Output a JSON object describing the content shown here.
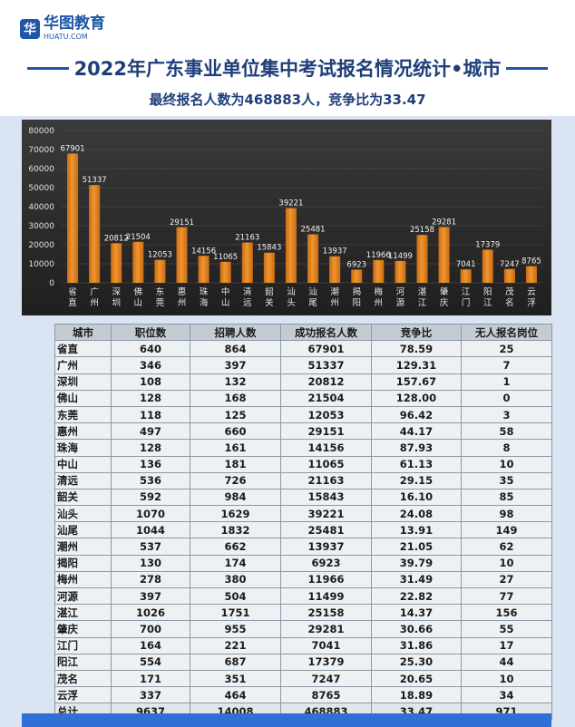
{
  "logo": {
    "mark": "华",
    "name": "华图教育",
    "sub": "HUATU.COM"
  },
  "title": "2022年广东事业单位集中考试报名情况统计•城市",
  "subtitle": "最终报名人数为468883人，竞争比为33.47",
  "chart_data": {
    "type": "bar",
    "categories": [
      "省直",
      "广州",
      "深圳",
      "佛山",
      "东莞",
      "惠州",
      "珠海",
      "中山",
      "清远",
      "韶关",
      "汕头",
      "汕尾",
      "潮州",
      "揭阳",
      "梅州",
      "河源",
      "湛江",
      "肇庆",
      "江门",
      "阳江",
      "茂名",
      "云浮"
    ],
    "values": [
      67901,
      51337,
      20812,
      21504,
      12053,
      29151,
      14156,
      11065,
      21163,
      15843,
      39221,
      25481,
      13937,
      6923,
      11966,
      11499,
      25158,
      29281,
      7041,
      17379,
      7247,
      8765
    ],
    "ylim": [
      0,
      80000
    ],
    "yticks": [
      0,
      10000,
      20000,
      30000,
      40000,
      50000,
      60000,
      70000,
      80000
    ],
    "bar_color": "#f0962e"
  },
  "table": {
    "headers": [
      "城市",
      "职位数",
      "招聘人数",
      "成功报名人数",
      "竞争比",
      "无人报名岗位"
    ],
    "rows": [
      [
        "省直",
        "640",
        "864",
        "67901",
        "78.59",
        "25"
      ],
      [
        "广州",
        "346",
        "397",
        "51337",
        "129.31",
        "7"
      ],
      [
        "深圳",
        "108",
        "132",
        "20812",
        "157.67",
        "1"
      ],
      [
        "佛山",
        "128",
        "168",
        "21504",
        "128.00",
        "0"
      ],
      [
        "东莞",
        "118",
        "125",
        "12053",
        "96.42",
        "3"
      ],
      [
        "惠州",
        "497",
        "660",
        "29151",
        "44.17",
        "58"
      ],
      [
        "珠海",
        "128",
        "161",
        "14156",
        "87.93",
        "8"
      ],
      [
        "中山",
        "136",
        "181",
        "11065",
        "61.13",
        "10"
      ],
      [
        "清远",
        "536",
        "726",
        "21163",
        "29.15",
        "35"
      ],
      [
        "韶关",
        "592",
        "984",
        "15843",
        "16.10",
        "85"
      ],
      [
        "汕头",
        "1070",
        "1629",
        "39221",
        "24.08",
        "98"
      ],
      [
        "汕尾",
        "1044",
        "1832",
        "25481",
        "13.91",
        "149"
      ],
      [
        "潮州",
        "537",
        "662",
        "13937",
        "21.05",
        "62"
      ],
      [
        "揭阳",
        "130",
        "174",
        "6923",
        "39.79",
        "10"
      ],
      [
        "梅州",
        "278",
        "380",
        "11966",
        "31.49",
        "27"
      ],
      [
        "河源",
        "397",
        "504",
        "11499",
        "22.82",
        "77"
      ],
      [
        "湛江",
        "1026",
        "1751",
        "25158",
        "14.37",
        "156"
      ],
      [
        "肇庆",
        "700",
        "955",
        "29281",
        "30.66",
        "55"
      ],
      [
        "江门",
        "164",
        "221",
        "7041",
        "31.86",
        "17"
      ],
      [
        "阳江",
        "554",
        "687",
        "17379",
        "25.30",
        "44"
      ],
      [
        "茂名",
        "171",
        "351",
        "7247",
        "20.65",
        "10"
      ],
      [
        "云浮",
        "337",
        "464",
        "8765",
        "18.89",
        "34"
      ],
      [
        "总计",
        "9637",
        "14008",
        "468883",
        "33.47",
        "971"
      ]
    ]
  }
}
